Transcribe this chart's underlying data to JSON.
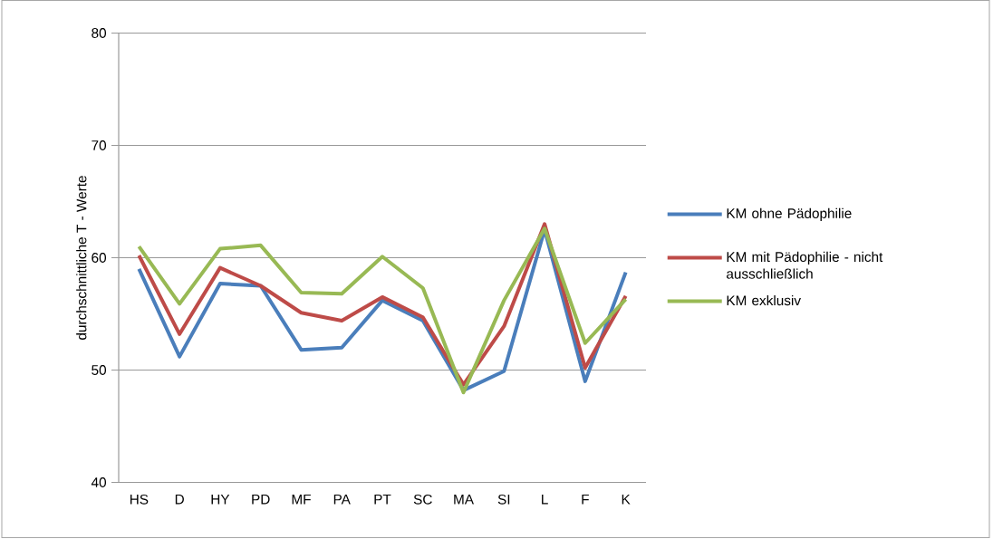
{
  "chart_data": {
    "type": "line",
    "ylabel": "durchschnittliche T - Werte",
    "categories": [
      "HS",
      "D",
      "HY",
      "PD",
      "MF",
      "PA",
      "PT",
      "SC",
      "MA",
      "SI",
      "L",
      "F",
      "K"
    ],
    "series": [
      {
        "name": "KM ohne Pädophilie",
        "color": "#4a7ebb",
        "values": [
          59.0,
          51.2,
          57.7,
          57.5,
          51.8,
          52.0,
          56.2,
          54.4,
          48.2,
          49.9,
          62.5,
          49.0,
          58.7
        ]
      },
      {
        "name": "KM mit Pädophilie - nicht ausschließlich",
        "color": "#be4b48",
        "values": [
          60.2,
          53.2,
          59.1,
          57.5,
          55.1,
          54.4,
          56.5,
          54.7,
          48.7,
          53.9,
          63.0,
          50.2,
          56.6
        ]
      },
      {
        "name": "KM exklusiv",
        "color": "#98b954",
        "values": [
          61.0,
          55.9,
          60.8,
          61.1,
          56.9,
          56.8,
          60.1,
          57.3,
          48.0,
          56.2,
          62.6,
          52.4,
          56.3
        ]
      }
    ],
    "ylim": [
      40,
      80
    ],
    "yticks": [
      40,
      50,
      60,
      70,
      80
    ],
    "grid": "y",
    "legend": "right",
    "marker": "none",
    "line_style": "solid"
  }
}
